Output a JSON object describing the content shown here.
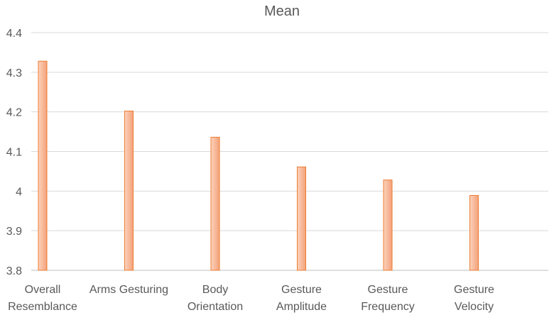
{
  "chart_data": {
    "type": "bar",
    "title": "Mean",
    "categories": [
      [
        "Overall",
        "Resemblance"
      ],
      [
        "Arms Gesturing"
      ],
      [
        "Body",
        "Orientation"
      ],
      [
        "Gesture",
        "Amplitude"
      ],
      [
        "Gesture",
        "Frequency"
      ],
      [
        "Gesture",
        "Velocity"
      ]
    ],
    "values": [
      4.328,
      4.202,
      4.136,
      4.061,
      4.028,
      3.989
    ],
    "yticks": [
      "3.8",
      "3.9",
      "4",
      "4.1",
      "4.2",
      "4.3",
      "4.4"
    ],
    "ylim": [
      3.8,
      4.4
    ],
    "xlabel": "",
    "ylabel": "",
    "grid": true,
    "legend": "none",
    "colors": {
      "bar_fill_light": "#fbd3bd",
      "bar_fill_dark": "#f4a27a",
      "bar_stroke": "#ed7d31",
      "grid": "#d9d9d9",
      "text": "#595959"
    }
  }
}
